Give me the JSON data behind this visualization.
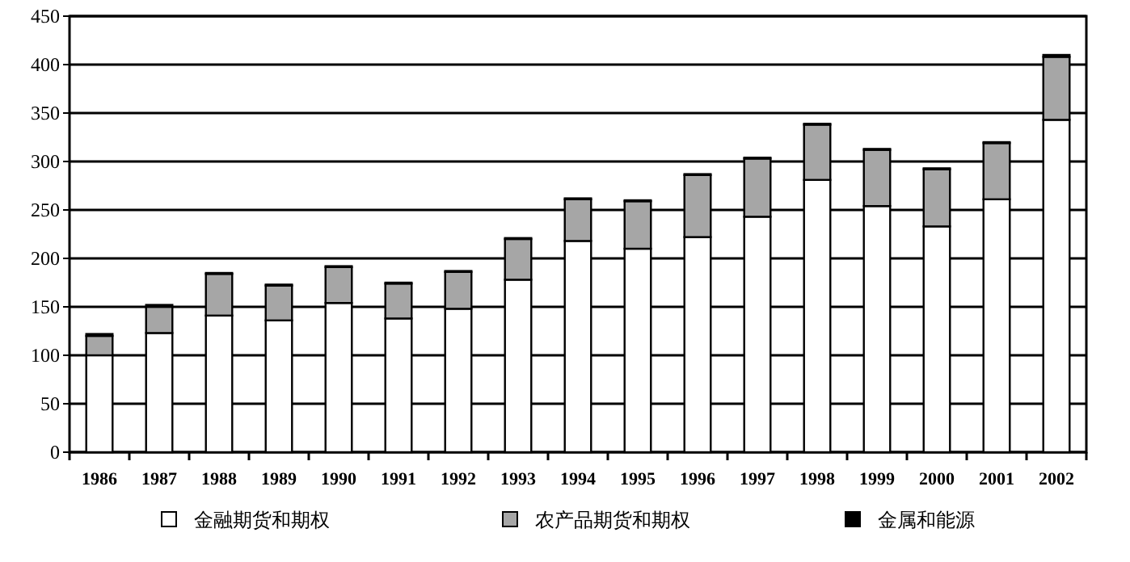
{
  "chart_data": {
    "type": "bar",
    "stacked": true,
    "categories": [
      "1986",
      "1987",
      "1988",
      "1989",
      "1990",
      "1991",
      "1992",
      "1993",
      "1994",
      "1995",
      "1996",
      "1997",
      "1998",
      "1999",
      "2000",
      "2001",
      "2002"
    ],
    "series": [
      {
        "name": "金融期货和期权",
        "color": "#ffffff",
        "values": [
          100,
          123,
          141,
          136,
          154,
          138,
          148,
          178,
          218,
          210,
          222,
          243,
          281,
          254,
          233,
          261,
          343
        ]
      },
      {
        "name": "农产品期货和期权",
        "color": "#a6a6a6",
        "values": [
          20,
          27,
          43,
          36,
          37,
          36,
          38,
          42,
          43,
          49,
          64,
          60,
          57,
          58,
          59,
          58,
          65
        ]
      },
      {
        "name": "金属和能源",
        "color": "#000000",
        "values": [
          2,
          2,
          1,
          1,
          1,
          1,
          1,
          1,
          1,
          1,
          1,
          1,
          1,
          1,
          1,
          1,
          2
        ]
      }
    ],
    "ylim": [
      0,
      450
    ],
    "yticks": [
      0,
      50,
      100,
      150,
      200,
      250,
      300,
      350,
      400,
      450
    ],
    "grid": "y",
    "legend": "bottom"
  }
}
